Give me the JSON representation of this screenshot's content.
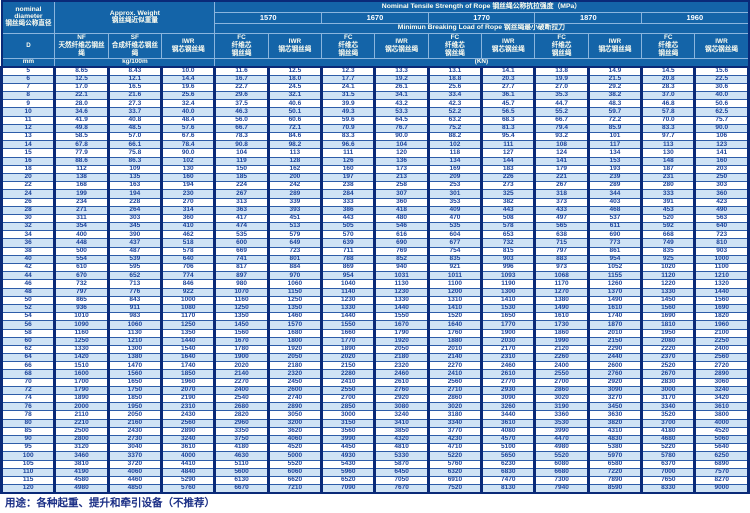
{
  "colors": {
    "header_bg": "#1464a8",
    "header_text": "#fdfdf0",
    "frame_border": "#0a2a78",
    "row_alt_bg": "#cfe3f5",
    "row_bg": "#ffffff",
    "data_text": "#1d449b",
    "footer_text": "#1b2f86"
  },
  "table": {
    "header": {
      "nominal_diameter_en1": "nominal",
      "nominal_diameter_en2": "diameter",
      "nominal_diameter_zh": "钢丝绳公称直径",
      "d_label": "D",
      "mm_label": "mm",
      "approx_weight_en": "Approx. Weight",
      "approx_weight_zh": "钢丝绳近似重量",
      "kg_label": "kg/100m",
      "tensile_title": "Nominal Tensile Strength of Rope 钢丝绳公称抗拉强度（MPa）",
      "strengths": [
        "1570",
        "1670",
        "1770",
        "1870",
        "1960"
      ],
      "breaking_title": "Minimun Breaking Load of Rope 钢丝绳最小破断拉力",
      "kn_label": "(KN)",
      "weight_cols": [
        {
          "abbr": "NF",
          "zh": "天然纤维芯钢丝绳"
        },
        {
          "abbr": "SF",
          "zh": "合成纤维芯钢丝绳"
        },
        {
          "abbr": "IWR",
          "zh": "钢芯钢丝绳"
        }
      ],
      "fc": {
        "abbr": "FC",
        "zh1": "纤维芯",
        "zh2": "钢丝绳"
      },
      "iwr": {
        "abbr": "IWR",
        "zh": "钢芯钢丝绳"
      }
    },
    "rows": [
      [
        "5",
        "8.65",
        "8.43",
        "10.0",
        "11.6",
        "12.5",
        "12.3",
        "13.3",
        "13.1",
        "14.1",
        "13.8",
        "14.9",
        "14.5",
        "15.6"
      ],
      [
        "6",
        "12.5",
        "12.1",
        "14.4",
        "16.7",
        "18.0",
        "17.7",
        "19.2",
        "18.8",
        "20.3",
        "19.9",
        "21.5",
        "20.8",
        "22.5"
      ],
      [
        "7",
        "17.0",
        "16.5",
        "19.6",
        "22.7",
        "24.5",
        "24.1",
        "26.1",
        "25.6",
        "27.7",
        "27.0",
        "29.2",
        "28.3",
        "30.6"
      ],
      [
        "8",
        "22.1",
        "21.6",
        "25.6",
        "29.6",
        "32.1",
        "31.5",
        "34.1",
        "33.4",
        "36.1",
        "35.3",
        "38.2",
        "37.0",
        "40.0"
      ],
      [
        "9",
        "28.0",
        "27.3",
        "32.4",
        "37.5",
        "40.6",
        "39.9",
        "43.2",
        "42.3",
        "45.7",
        "44.7",
        "48.3",
        "46.8",
        "50.6"
      ],
      [
        "10",
        "34.6",
        "33.7",
        "40.0",
        "46.3",
        "50.1",
        "49.3",
        "53.3",
        "52.2",
        "56.5",
        "55.2",
        "59.7",
        "57.8",
        "62.5"
      ],
      [
        "11",
        "41.9",
        "40.8",
        "48.4",
        "56.0",
        "60.6",
        "59.6",
        "64.5",
        "63.2",
        "68.3",
        "66.7",
        "72.2",
        "70.0",
        "75.7"
      ],
      [
        "12",
        "49.8",
        "48.5",
        "57.6",
        "66.7",
        "72.1",
        "70.9",
        "76.7",
        "75.2",
        "81.3",
        "79.4",
        "85.9",
        "83.3",
        "90.0"
      ],
      [
        "13",
        "58.5",
        "57.0",
        "67.6",
        "78.3",
        "84.6",
        "83.3",
        "90.0",
        "88.2",
        "95.4",
        "93.2",
        "101",
        "97.7",
        "106"
      ],
      [
        "14",
        "67.8",
        "66.1",
        "78.4",
        "90.8",
        "98.2",
        "96.6",
        "104",
        "102",
        "111",
        "108",
        "117",
        "113",
        "123"
      ],
      [
        "15",
        "77.9",
        "75.8",
        "90.0",
        "104",
        "113",
        "111",
        "120",
        "118",
        "127",
        "124",
        "134",
        "130",
        "141"
      ],
      [
        "16",
        "88.6",
        "86.3",
        "102",
        "119",
        "128",
        "126",
        "136",
        "134",
        "144",
        "141",
        "153",
        "148",
        "160"
      ],
      [
        "18",
        "112",
        "109",
        "130",
        "150",
        "162",
        "160",
        "173",
        "169",
        "183",
        "179",
        "193",
        "187",
        "203"
      ],
      [
        "20",
        "138",
        "135",
        "160",
        "185",
        "200",
        "197",
        "213",
        "209",
        "226",
        "221",
        "239",
        "231",
        "250"
      ],
      [
        "22",
        "168",
        "163",
        "194",
        "224",
        "242",
        "238",
        "258",
        "253",
        "273",
        "267",
        "289",
        "280",
        "303"
      ],
      [
        "24",
        "199",
        "194",
        "230",
        "267",
        "289",
        "284",
        "307",
        "301",
        "325",
        "318",
        "344",
        "333",
        "360"
      ],
      [
        "26",
        "234",
        "228",
        "270",
        "313",
        "339",
        "333",
        "360",
        "353",
        "382",
        "373",
        "403",
        "391",
        "423"
      ],
      [
        "28",
        "271",
        "264",
        "314",
        "363",
        "393",
        "386",
        "418",
        "409",
        "443",
        "433",
        "468",
        "453",
        "490"
      ],
      [
        "30",
        "311",
        "303",
        "360",
        "417",
        "451",
        "443",
        "480",
        "470",
        "508",
        "497",
        "537",
        "520",
        "563"
      ],
      [
        "32",
        "354",
        "345",
        "410",
        "474",
        "513",
        "505",
        "546",
        "535",
        "578",
        "565",
        "611",
        "592",
        "640"
      ],
      [
        "34",
        "400",
        "390",
        "462",
        "535",
        "579",
        "570",
        "616",
        "604",
        "653",
        "638",
        "690",
        "668",
        "723"
      ],
      [
        "36",
        "448",
        "437",
        "518",
        "600",
        "649",
        "639",
        "690",
        "677",
        "732",
        "715",
        "773",
        "749",
        "810"
      ],
      [
        "38",
        "500",
        "487",
        "578",
        "669",
        "723",
        "711",
        "769",
        "754",
        "815",
        "797",
        "861",
        "835",
        "903"
      ],
      [
        "40",
        "554",
        "539",
        "640",
        "741",
        "801",
        "788",
        "852",
        "835",
        "903",
        "883",
        "954",
        "925",
        "1000"
      ],
      [
        "42",
        "610",
        "595",
        "706",
        "817",
        "884",
        "869",
        "940",
        "921",
        "996",
        "973",
        "1052",
        "1020",
        "1100"
      ],
      [
        "44",
        "670",
        "652",
        "774",
        "897",
        "970",
        "954",
        "1031",
        "1011",
        "1093",
        "1068",
        "1155",
        "1120",
        "1210"
      ],
      [
        "46",
        "732",
        "713",
        "846",
        "980",
        "1060",
        "1040",
        "1130",
        "1100",
        "1190",
        "1170",
        "1260",
        "1220",
        "1320"
      ],
      [
        "48",
        "797",
        "776",
        "922",
        "1070",
        "1150",
        "1140",
        "1230",
        "1200",
        "1300",
        "1270",
        "1370",
        "1330",
        "1440"
      ],
      [
        "50",
        "865",
        "843",
        "1000",
        "1160",
        "1250",
        "1230",
        "1330",
        "1310",
        "1410",
        "1380",
        "1490",
        "1450",
        "1560"
      ],
      [
        "52",
        "936",
        "911",
        "1080",
        "1250",
        "1350",
        "1330",
        "1440",
        "1410",
        "1530",
        "1490",
        "1610",
        "1560",
        "1690"
      ],
      [
        "54",
        "1010",
        "983",
        "1170",
        "1350",
        "1460",
        "1440",
        "1550",
        "1520",
        "1650",
        "1610",
        "1740",
        "1690",
        "1820"
      ],
      [
        "56",
        "1090",
        "1060",
        "1250",
        "1450",
        "1570",
        "1550",
        "1670",
        "1640",
        "1770",
        "1730",
        "1870",
        "1810",
        "1960"
      ],
      [
        "58",
        "1160",
        "1130",
        "1350",
        "1560",
        "1680",
        "1660",
        "1790",
        "1760",
        "1900",
        "1860",
        "2010",
        "1950",
        "2100"
      ],
      [
        "60",
        "1250",
        "1210",
        "1440",
        "1670",
        "1800",
        "1770",
        "1920",
        "1880",
        "2030",
        "1990",
        "2150",
        "2080",
        "2250"
      ],
      [
        "62",
        "1330",
        "1300",
        "1540",
        "1780",
        "1920",
        "1890",
        "2050",
        "2010",
        "2170",
        "2120",
        "2290",
        "2220",
        "2400"
      ],
      [
        "64",
        "1420",
        "1380",
        "1640",
        "1900",
        "2050",
        "2020",
        "2180",
        "2140",
        "2310",
        "2260",
        "2440",
        "2370",
        "2560"
      ],
      [
        "66",
        "1510",
        "1470",
        "1740",
        "2020",
        "2180",
        "2150",
        "2320",
        "2270",
        "2460",
        "2400",
        "2600",
        "2520",
        "2720"
      ],
      [
        "68",
        "1600",
        "1560",
        "1850",
        "2140",
        "2320",
        "2280",
        "2460",
        "2410",
        "2610",
        "2550",
        "2760",
        "2670",
        "2890"
      ],
      [
        "70",
        "1700",
        "1650",
        "1960",
        "2270",
        "2450",
        "2410",
        "2610",
        "2560",
        "2770",
        "2700",
        "2920",
        "2830",
        "3060"
      ],
      [
        "72",
        "1790",
        "1750",
        "2070",
        "2400",
        "2600",
        "2550",
        "2760",
        "2710",
        "2930",
        "2860",
        "3090",
        "3000",
        "3240"
      ],
      [
        "74",
        "1890",
        "1850",
        "2190",
        "2540",
        "2740",
        "2700",
        "2920",
        "2860",
        "3090",
        "3020",
        "3270",
        "3170",
        "3420"
      ],
      [
        "76",
        "2000",
        "1950",
        "2310",
        "2680",
        "2890",
        "2850",
        "3080",
        "3020",
        "3260",
        "3190",
        "3450",
        "3340",
        "3610"
      ],
      [
        "78",
        "2110",
        "2050",
        "2430",
        "2820",
        "3050",
        "3000",
        "3240",
        "3180",
        "3440",
        "3360",
        "3630",
        "3520",
        "3800"
      ],
      [
        "80",
        "2210",
        "2160",
        "2560",
        "2960",
        "3200",
        "3150",
        "3410",
        "3340",
        "3610",
        "3530",
        "3820",
        "3700",
        "4000"
      ],
      [
        "85",
        "2500",
        "2430",
        "2890",
        "3350",
        "3620",
        "3560",
        "3850",
        "3770",
        "4080",
        "3990",
        "4310",
        "4180",
        "4520"
      ],
      [
        "90",
        "2800",
        "2730",
        "3240",
        "3750",
        "4060",
        "3990",
        "4320",
        "4230",
        "4570",
        "4470",
        "4830",
        "4680",
        "5060"
      ],
      [
        "95",
        "3120",
        "3040",
        "3610",
        "4180",
        "4520",
        "4450",
        "4810",
        "4710",
        "5100",
        "4980",
        "5380",
        "5220",
        "5640"
      ],
      [
        "100",
        "3460",
        "3370",
        "4000",
        "4630",
        "5000",
        "4930",
        "5330",
        "5220",
        "5650",
        "5520",
        "5970",
        "5780",
        "6250"
      ],
      [
        "105",
        "3810",
        "3720",
        "4410",
        "5110",
        "5520",
        "5430",
        "5870",
        "5760",
        "6230",
        "6080",
        "6580",
        "6370",
        "6890"
      ],
      [
        "110",
        "4190",
        "4060",
        "4840",
        "5600",
        "6060",
        "5960",
        "6450",
        "6320",
        "6830",
        "6680",
        "7220",
        "7000",
        "7570"
      ],
      [
        "115",
        "4580",
        "4460",
        "5290",
        "6130",
        "6620",
        "6520",
        "7050",
        "6910",
        "7470",
        "7300",
        "7890",
        "7650",
        "8270"
      ],
      [
        "120",
        "4980",
        "4850",
        "5760",
        "6670",
        "7210",
        "7090",
        "7670",
        "7520",
        "8130",
        "7940",
        "8590",
        "8330",
        "9000"
      ]
    ],
    "footer": "用途：各种起重、提升和牵引设备（不推荐）"
  }
}
